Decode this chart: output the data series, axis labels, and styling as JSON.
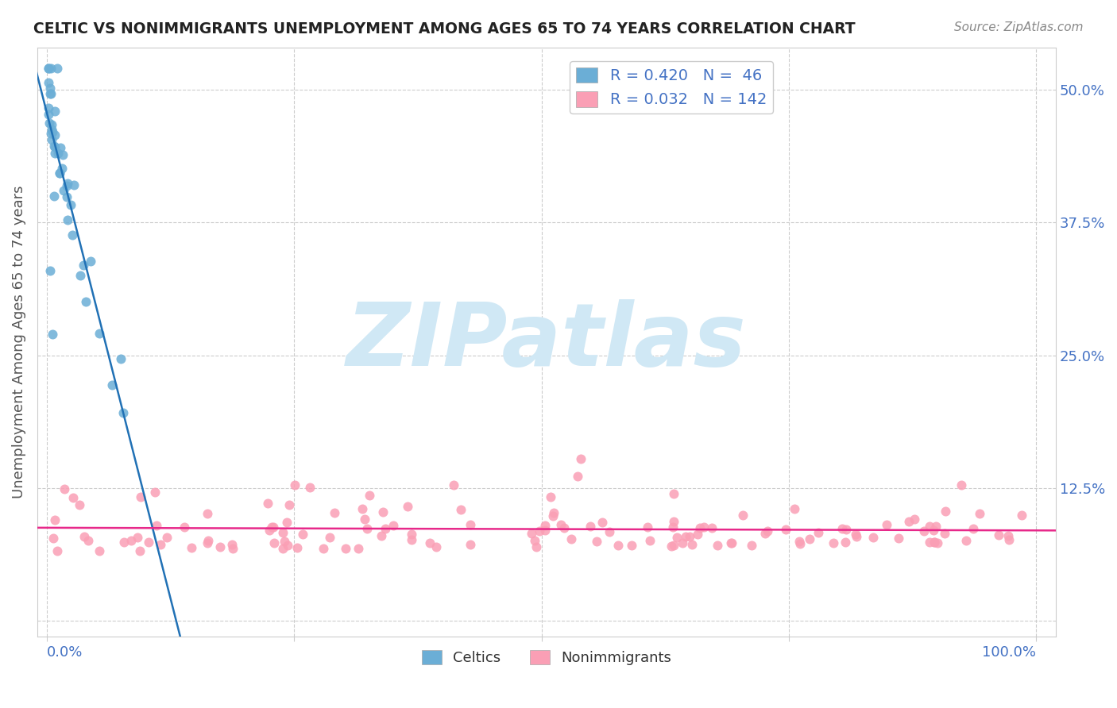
{
  "title": "CELTIC VS NONIMMIGRANTS UNEMPLOYMENT AMONG AGES 65 TO 74 YEARS CORRELATION CHART",
  "source_text": "Source: ZipAtlas.com",
  "ylabel": "Unemployment Among Ages 65 to 74 years",
  "ytick_vals": [
    0.0,
    0.125,
    0.25,
    0.375,
    0.5
  ],
  "ytick_labels": [
    "",
    "12.5%",
    "25.0%",
    "37.5%",
    "50.0%"
  ],
  "legend_r1": "R = 0.420",
  "legend_n1": "N =  46",
  "legend_r2": "R = 0.032",
  "legend_n2": "N = 142",
  "celtics_color": "#6baed6",
  "nonimmigrants_color": "#fa9fb5",
  "trend_celtics_color": "#2171b5",
  "trend_nonimmigrants_color": "#e7298a",
  "background_color": "#ffffff",
  "watermark_color": "#d0e8f5",
  "title_color": "#222222",
  "axis_label_color": "#4472c4",
  "source_color": "#888888"
}
